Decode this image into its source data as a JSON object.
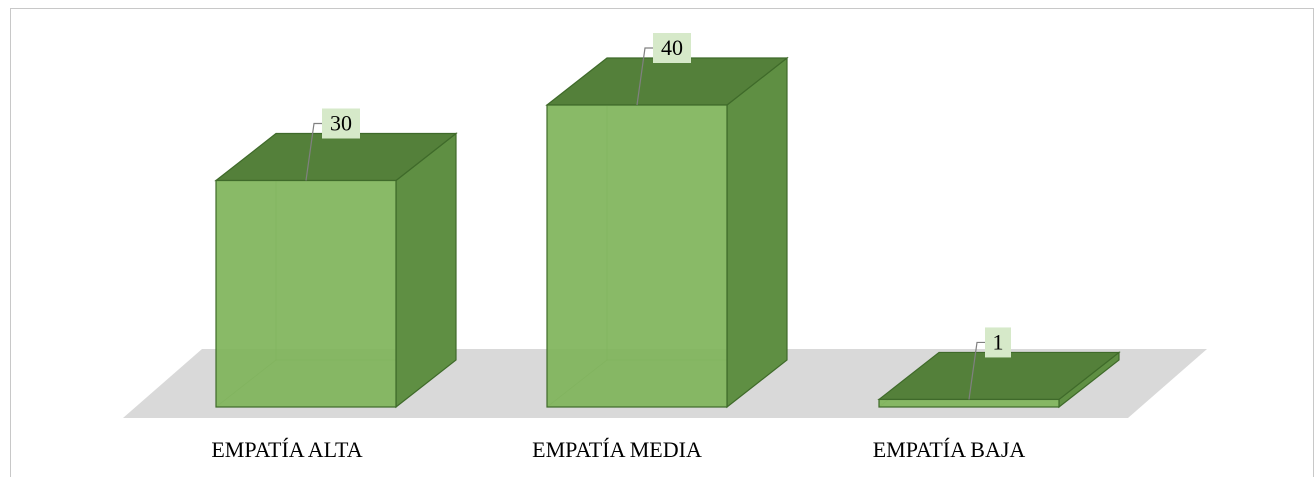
{
  "chart_data": {
    "type": "bar",
    "style": "3d-column",
    "categories": [
      "EMPATÍA ALTA",
      "EMPATÍA MEDIA",
      "EMPATÍA BAJA"
    ],
    "values": [
      30,
      40,
      1
    ],
    "title": "",
    "xlabel": "",
    "ylabel": "",
    "ylim": [
      0,
      40
    ],
    "grid": false,
    "legend": "none",
    "colors": {
      "front": "#7fb45a",
      "top": "#54803a",
      "side": "#5f8f43",
      "edge": "#3f6a2a",
      "floor": "#d9d9d9",
      "label_bg": "#d6e9c9"
    }
  }
}
